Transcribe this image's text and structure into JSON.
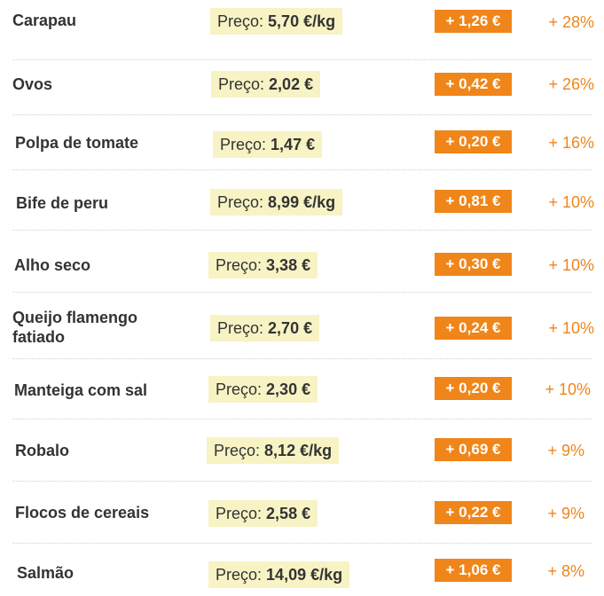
{
  "price_prefix": "Preço:",
  "colors": {
    "increase_badge": "#f08519",
    "price_background": "#f7f3c4",
    "percent_text": "#f08519"
  },
  "items": [
    {
      "name": "Carapau",
      "price": "5,70 €/kg",
      "increase": "+ 1,26 €",
      "percent": "+ 28%"
    },
    {
      "name": "Ovos",
      "price": "2,02 €",
      "increase": "+ 0,42 €",
      "percent": "+ 26%"
    },
    {
      "name": "Polpa de tomate",
      "price": "1,47 €",
      "increase": "+ 0,20 €",
      "percent": "+ 16%"
    },
    {
      "name": "Bife de peru",
      "price": "8,99 €/kg",
      "increase": "+ 0,81 €",
      "percent": "+ 10%"
    },
    {
      "name": "Alho seco",
      "price": "3,38 €",
      "increase": "+ 0,30 €",
      "percent": "+ 10%"
    },
    {
      "name": "Queijo flamengo fatiado",
      "price": "2,70 €",
      "increase": "+ 0,24 €",
      "percent": "+ 10%"
    },
    {
      "name": "Manteiga com sal",
      "price": "2,30 €",
      "increase": "+ 0,20 €",
      "percent": "+ 10%"
    },
    {
      "name": "Robalo",
      "price": "8,12 €/kg",
      "increase": "+ 0,69 €",
      "percent": "+ 9%"
    },
    {
      "name": "Flocos de cereais",
      "price": "2,58 €",
      "increase": "+ 0,22 €",
      "percent": "+ 9%"
    },
    {
      "name": "Salmão",
      "price": "14,09 €/kg",
      "increase": "+ 1,06 €",
      "percent": "+ 8%"
    }
  ]
}
